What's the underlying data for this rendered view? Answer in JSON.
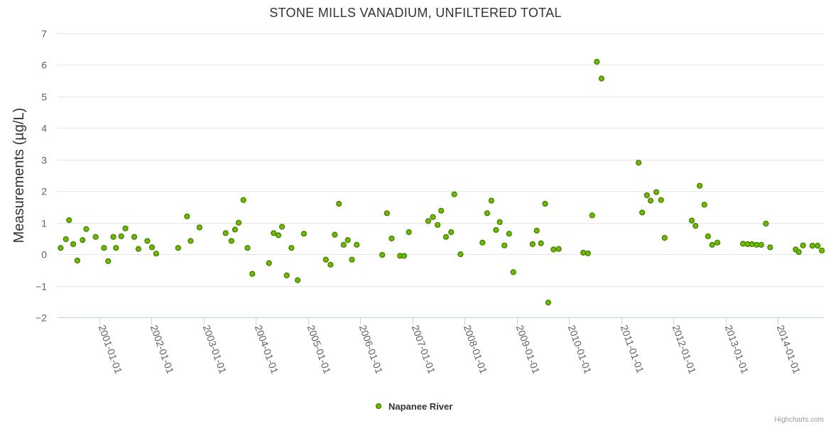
{
  "chart_data": {
    "type": "scatter",
    "title": "STONE MILLS VANADIUM, UNFILTERED TOTAL",
    "ylabel": "Measurements (µg/L)",
    "xlabel": "",
    "ylim": [
      -2,
      7
    ],
    "yticks": [
      -2,
      -1,
      0,
      1,
      2,
      3,
      4,
      5,
      6,
      7
    ],
    "xlim": [
      2000.2,
      2014.88
    ],
    "xticks": [
      {
        "label": "2001-01-01",
        "value": 2001.0
      },
      {
        "label": "2002-01-01",
        "value": 2002.0
      },
      {
        "label": "2003-01-01",
        "value": 2003.0
      },
      {
        "label": "2004-01-01",
        "value": 2004.0
      },
      {
        "label": "2005-01-01",
        "value": 2005.0
      },
      {
        "label": "2006-01-01",
        "value": 2006.0
      },
      {
        "label": "2007-01-01",
        "value": 2007.0
      },
      {
        "label": "2008-01-01",
        "value": 2008.0
      },
      {
        "label": "2009-01-01",
        "value": 2009.0
      },
      {
        "label": "2010-01-01",
        "value": 2010.0
      },
      {
        "label": "2011-01-01",
        "value": 2011.0
      },
      {
        "label": "2012-01-01",
        "value": 2012.0
      },
      {
        "label": "2013-01-01",
        "value": 2013.0
      },
      {
        "label": "2014-01-01",
        "value": 2014.0
      }
    ],
    "legend": "bottom-center",
    "series": [
      {
        "name": "Napanee River",
        "color": "#72ba00",
        "points": [
          [
            2000.26,
            0.2
          ],
          [
            2000.36,
            0.48
          ],
          [
            2000.42,
            1.08
          ],
          [
            2000.5,
            0.32
          ],
          [
            2000.58,
            -0.2
          ],
          [
            2000.68,
            0.45
          ],
          [
            2000.75,
            0.8
          ],
          [
            2000.93,
            0.55
          ],
          [
            2001.09,
            0.2
          ],
          [
            2001.17,
            -0.22
          ],
          [
            2001.27,
            0.55
          ],
          [
            2001.32,
            0.2
          ],
          [
            2001.42,
            0.57
          ],
          [
            2001.5,
            0.82
          ],
          [
            2001.67,
            0.55
          ],
          [
            2001.75,
            0.17
          ],
          [
            2001.92,
            0.42
          ],
          [
            2002.01,
            0.22
          ],
          [
            2002.09,
            0.02
          ],
          [
            2002.51,
            0.2
          ],
          [
            2002.68,
            1.2
          ],
          [
            2002.75,
            0.42
          ],
          [
            2002.92,
            0.85
          ],
          [
            2003.42,
            0.67
          ],
          [
            2003.53,
            0.42
          ],
          [
            2003.6,
            0.78
          ],
          [
            2003.67,
            1.0
          ],
          [
            2003.76,
            1.72
          ],
          [
            2003.84,
            0.2
          ],
          [
            2003.93,
            -0.62
          ],
          [
            2004.25,
            -0.28
          ],
          [
            2004.34,
            0.67
          ],
          [
            2004.43,
            0.6
          ],
          [
            2004.5,
            0.87
          ],
          [
            2004.59,
            -0.67
          ],
          [
            2004.68,
            0.2
          ],
          [
            2004.8,
            -0.82
          ],
          [
            2004.92,
            0.65
          ],
          [
            2005.34,
            -0.17
          ],
          [
            2005.43,
            -0.33
          ],
          [
            2005.51,
            0.62
          ],
          [
            2005.59,
            1.6
          ],
          [
            2005.68,
            0.3
          ],
          [
            2005.76,
            0.45
          ],
          [
            2005.84,
            -0.17
          ],
          [
            2005.93,
            0.3
          ],
          [
            2006.42,
            -0.02
          ],
          [
            2006.51,
            1.3
          ],
          [
            2006.6,
            0.5
          ],
          [
            2006.76,
            -0.05
          ],
          [
            2006.84,
            -0.05
          ],
          [
            2006.93,
            0.7
          ],
          [
            2007.3,
            1.05
          ],
          [
            2007.39,
            1.18
          ],
          [
            2007.48,
            0.93
          ],
          [
            2007.55,
            1.38
          ],
          [
            2007.64,
            0.55
          ],
          [
            2007.74,
            0.7
          ],
          [
            2007.8,
            1.9
          ],
          [
            2007.92,
            0.0
          ],
          [
            2008.34,
            0.37
          ],
          [
            2008.43,
            1.3
          ],
          [
            2008.51,
            1.7
          ],
          [
            2008.6,
            0.77
          ],
          [
            2008.67,
            1.02
          ],
          [
            2008.76,
            0.28
          ],
          [
            2008.85,
            0.65
          ],
          [
            2008.93,
            -0.57
          ],
          [
            2009.3,
            0.32
          ],
          [
            2009.38,
            0.75
          ],
          [
            2009.46,
            0.35
          ],
          [
            2009.54,
            1.6
          ],
          [
            2009.6,
            -1.53
          ],
          [
            2009.7,
            0.15
          ],
          [
            2009.8,
            0.17
          ],
          [
            2010.27,
            0.05
          ],
          [
            2010.36,
            0.03
          ],
          [
            2010.44,
            1.23
          ],
          [
            2010.53,
            6.1
          ],
          [
            2010.62,
            5.57
          ],
          [
            2011.33,
            2.9
          ],
          [
            2011.4,
            1.32
          ],
          [
            2011.49,
            1.87
          ],
          [
            2011.56,
            1.7
          ],
          [
            2011.67,
            1.97
          ],
          [
            2011.76,
            1.72
          ],
          [
            2011.83,
            0.52
          ],
          [
            2012.35,
            1.07
          ],
          [
            2012.42,
            0.9
          ],
          [
            2012.5,
            2.17
          ],
          [
            2012.59,
            1.57
          ],
          [
            2012.66,
            0.57
          ],
          [
            2012.74,
            0.3
          ],
          [
            2012.84,
            0.37
          ],
          [
            2013.33,
            0.33
          ],
          [
            2013.42,
            0.32
          ],
          [
            2013.5,
            0.32
          ],
          [
            2013.59,
            0.3
          ],
          [
            2013.68,
            0.3
          ],
          [
            2013.77,
            0.97
          ],
          [
            2013.85,
            0.22
          ],
          [
            2014.34,
            0.15
          ],
          [
            2014.4,
            0.07
          ],
          [
            2014.48,
            0.28
          ],
          [
            2014.66,
            0.27
          ],
          [
            2014.76,
            0.27
          ],
          [
            2014.84,
            0.12
          ]
        ]
      }
    ]
  },
  "credits": "Highcharts.com"
}
